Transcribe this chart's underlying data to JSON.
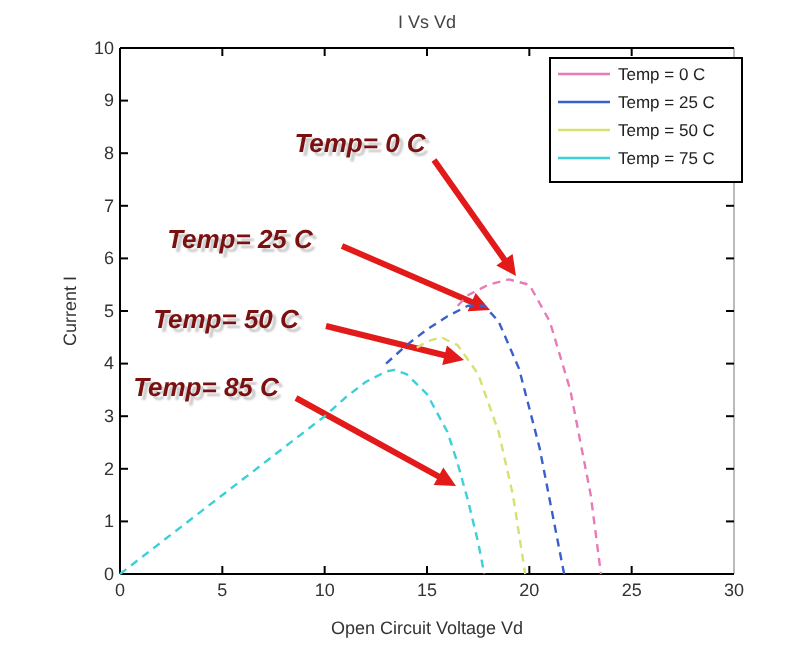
{
  "chart_data": {
    "type": "line",
    "title": "I Vs Vd",
    "xlabel": "Open Circuit Voltage Vd",
    "ylabel": "Current I",
    "xlim": [
      0,
      30
    ],
    "xticks": [
      0,
      5,
      10,
      15,
      20,
      25,
      30
    ],
    "ylim": [
      0,
      10
    ],
    "yticks": [
      0,
      1,
      2,
      3,
      4,
      5,
      6,
      7,
      8,
      9,
      10
    ],
    "legend": "top right",
    "line_style": "dashed",
    "grid": false,
    "series": [
      {
        "name": "Temp = 0 C",
        "color": "#e87ab8",
        "x": [
          16.5,
          17,
          18,
          19,
          20,
          21,
          22,
          23,
          23.5
        ],
        "values": [
          5.1,
          5.3,
          5.5,
          5.6,
          5.5,
          4.8,
          3.5,
          1.5,
          0
        ]
      },
      {
        "name": "Temp = 25 C",
        "color": "#3a5fcd",
        "x": [
          13,
          14,
          15,
          16,
          17,
          17.8,
          18.5,
          19.5,
          20.5,
          21.2,
          21.7
        ],
        "values": [
          4.0,
          4.35,
          4.65,
          4.9,
          5.1,
          5.1,
          4.8,
          3.9,
          2.4,
          1.0,
          0
        ]
      },
      {
        "name": "Temp = 50 C",
        "color": "#d8e070",
        "x": [
          14.5,
          15,
          15.7,
          16.5,
          17.5,
          18.5,
          19.2,
          19.8
        ],
        "values": [
          4.3,
          4.42,
          4.5,
          4.35,
          3.8,
          2.7,
          1.5,
          0
        ]
      },
      {
        "name": "Temp = 75 C",
        "color": "#3cd0d8",
        "x": [
          0,
          2,
          4,
          6,
          8,
          10,
          11,
          12,
          13,
          13.4,
          14,
          15,
          16,
          16.5,
          17,
          17.5,
          17.8
        ],
        "values": [
          0,
          0.6,
          1.2,
          1.8,
          2.4,
          3.0,
          3.35,
          3.65,
          3.85,
          3.88,
          3.8,
          3.42,
          2.7,
          2.1,
          1.4,
          0.6,
          0
        ]
      }
    ],
    "annotations": [
      "Temp= 0 C",
      "Temp= 25 C",
      "Temp= 50 C",
      "Temp= 85 C"
    ]
  }
}
